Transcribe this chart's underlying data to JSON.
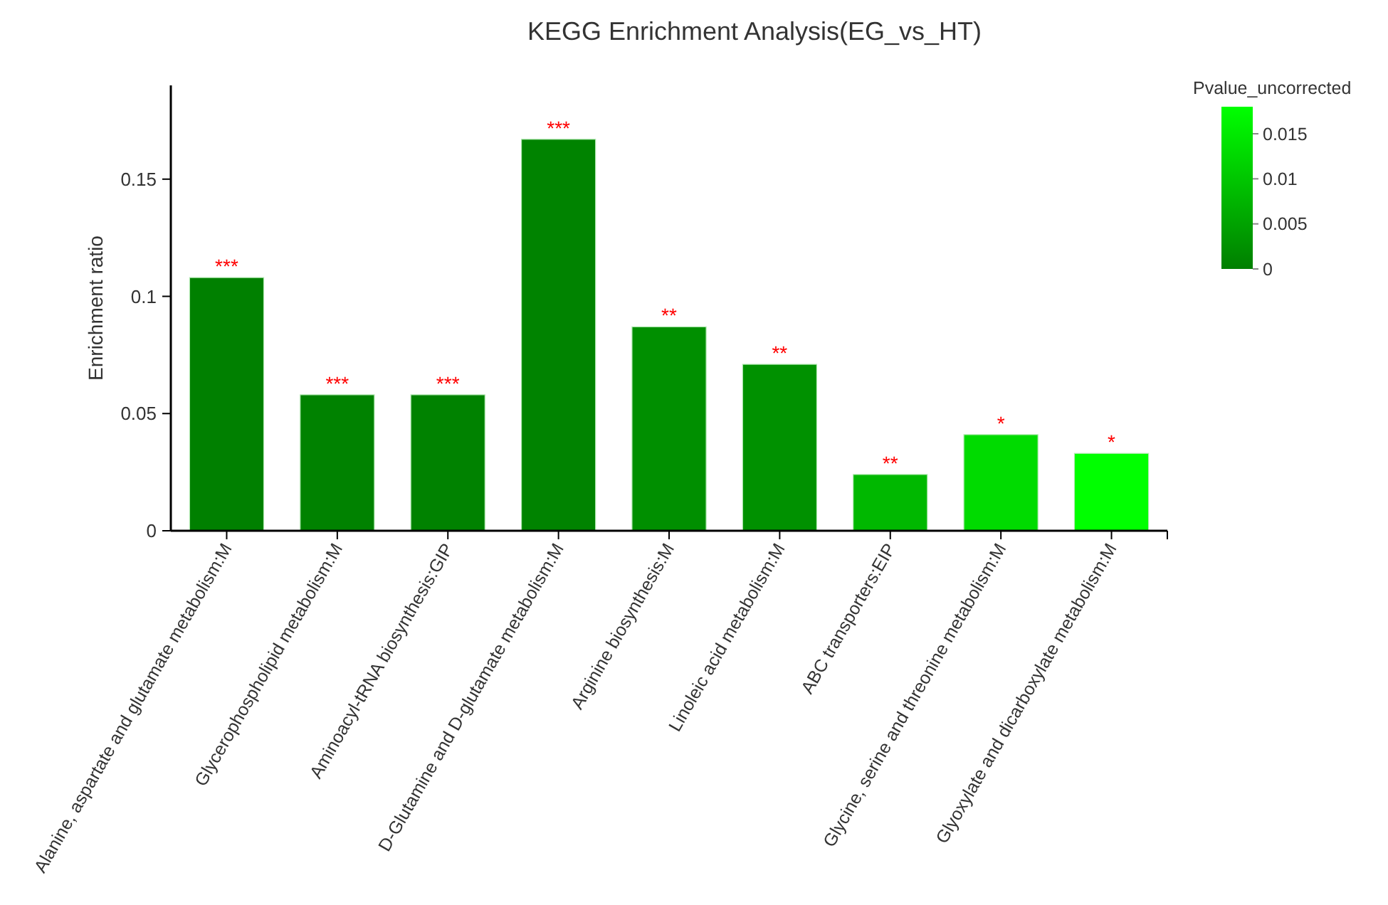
{
  "chart_data": {
    "type": "bar",
    "title": "KEGG Enrichment Analysis(EG_vs_HT)",
    "ylabel": "Enrichment ratio",
    "clabel": "Pvalue_uncorrected",
    "categories": [
      "Alanine, aspartate and glutamate metabolism:M",
      "Glycerophospholipid metabolism:M",
      "Aminoacyl-tRNA biosynthesis:GIP",
      "D-Glutamine and D-glutamate metabolism:M",
      "Arginine biosynthesis:M",
      "Linoleic acid metabolism:M",
      "ABC transporters:EIP",
      "Glycine, serine and threonine metabolism:M",
      "Glyoxylate and dicarboxylate metabolism:M"
    ],
    "values": [
      0.108,
      0.058,
      0.058,
      0.167,
      0.087,
      0.071,
      0.024,
      0.041,
      0.033
    ],
    "cvalues": [
      0.0001,
      0.0004,
      0.0004,
      0.0005,
      0.0023,
      0.0025,
      0.008,
      0.013,
      0.018
    ],
    "clim": [
      0,
      0.018
    ],
    "cticks": [
      0,
      0.005,
      0.01,
      0.015
    ],
    "ylim": [
      0,
      0.19
    ],
    "yticks": [
      0,
      0.05,
      0.1,
      0.15
    ],
    "grid": false,
    "annotations": [
      {
        "text": "***",
        "x": "Alanine, aspartate and glutamate metabolism:M",
        "y": 0.108
      },
      {
        "text": "***",
        "x": "Glycerophospholipid metabolism:M",
        "y": 0.058
      },
      {
        "text": "***",
        "x": "Aminoacyl-tRNA biosynthesis:GIP",
        "y": 0.058
      },
      {
        "text": "***",
        "x": "D-Glutamine and D-glutamate metabolism:M",
        "y": 0.167
      },
      {
        "text": "**",
        "x": "Arginine biosynthesis:M",
        "y": 0.087
      },
      {
        "text": "**",
        "x": "Linoleic acid metabolism:M",
        "y": 0.071
      },
      {
        "text": "**",
        "x": "ABC transporters:EIP",
        "y": 0.024
      },
      {
        "text": "*",
        "x": "Glycine, serine and threonine metabolism:M",
        "y": 0.041
      },
      {
        "text": "*",
        "x": "Glyoxylate and dicarboxylate metabolism:M",
        "y": 0.033
      }
    ]
  }
}
